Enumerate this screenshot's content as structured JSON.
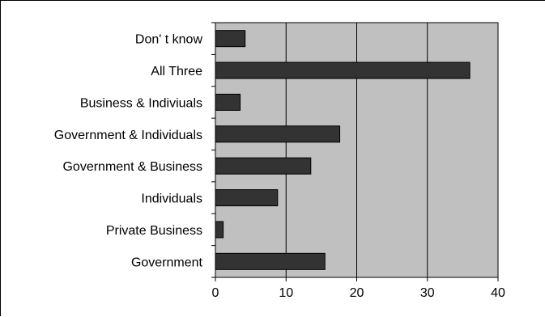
{
  "chart_data": {
    "type": "bar",
    "orientation": "horizontal",
    "categories": [
      "Don' t know",
      "All Three",
      "Business & Indiviuals",
      "Government & Individuals",
      "Government & Business",
      "Individuals",
      "Private Business",
      "Government"
    ],
    "values": [
      4.2,
      36.0,
      3.5,
      17.6,
      13.5,
      8.8,
      1.1,
      15.5
    ],
    "xlim": [
      0,
      40
    ],
    "xticks": [
      0,
      10,
      20,
      30,
      40
    ],
    "xtick_labels": [
      "0",
      "10",
      "20",
      "30",
      "40"
    ],
    "title": "",
    "xlabel": "",
    "ylabel": "",
    "grid": "vertical",
    "legend": "none",
    "colors": {
      "plot_background": "#c0c0c0",
      "bar_fill": "#333333",
      "bar_edge": "#000000",
      "gridline": "#000000"
    }
  }
}
